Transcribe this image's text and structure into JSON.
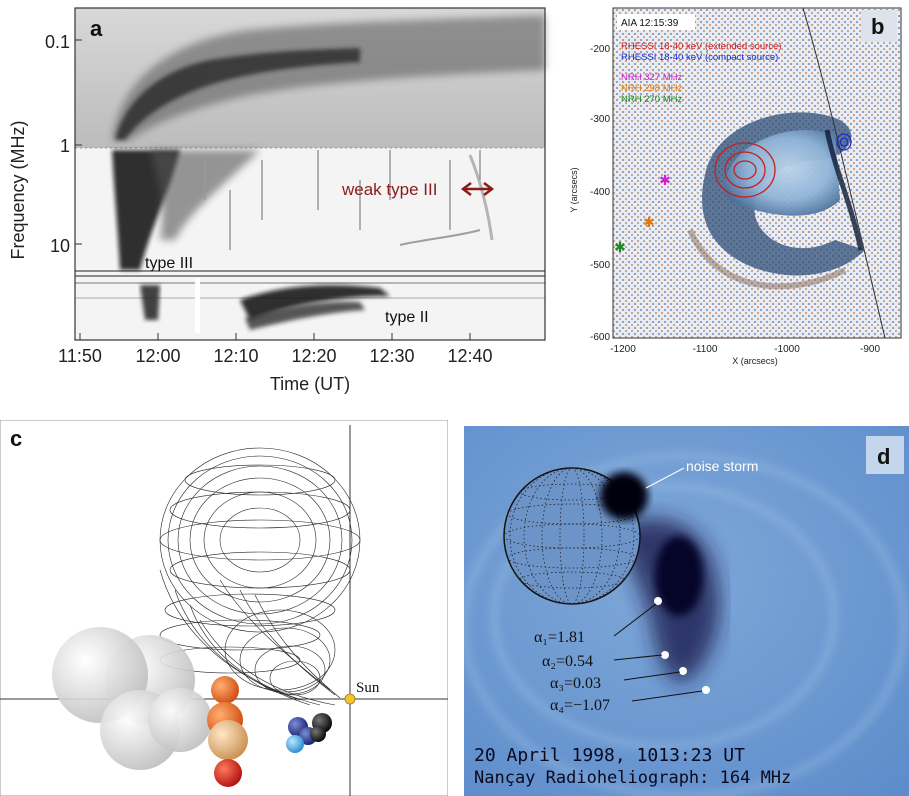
{
  "panel_a": {
    "label": "a",
    "ylabel": "Frequency  (MHz)",
    "xlabel": "Time  (UT)",
    "yticks": [
      "0.1",
      "1",
      "10"
    ],
    "xticks": [
      "11:50",
      "12:00",
      "12:10",
      "12:20",
      "12:30",
      "12:40"
    ],
    "annotations": {
      "weak_type3": "weak type III",
      "type3": "type III",
      "type2": "type II"
    },
    "colors": {
      "weak_type3": "#8b1a1a"
    }
  },
  "panel_b": {
    "label": "b",
    "timestamp": "AIA 12:15:39",
    "legend": [
      {
        "text": "RHESSI 18-40 keV (extended source)",
        "color": "#d01c1c"
      },
      {
        "text": "RHESSI 18-40 keV (compact source)",
        "color": "#1c2bd0"
      },
      {
        "text": "NRH 327 MHz",
        "color": "#d020d0"
      },
      {
        "text": "NRH 298 MHz",
        "color": "#e07a10"
      },
      {
        "text": "NRH 270 MHz",
        "color": "#1a8a1a"
      }
    ],
    "yticks": [
      "-200",
      "-300",
      "-400",
      "-500",
      "-600"
    ],
    "xticks": [
      "-1200",
      "-1100",
      "-1000",
      "-900"
    ],
    "ylabel": "Y (arcsecs)",
    "xlabel": "X (arcsecs)"
  },
  "panel_c": {
    "label": "c",
    "sun_label": "Sun"
  },
  "panel_d": {
    "label": "d",
    "noise_storm": "noise storm",
    "alphas": [
      "α₁=1.81",
      "α₂=0.54",
      "α₃=0.03",
      "α₄=−1.07"
    ],
    "caption_line1": "20 April 1998, 1013:23 UT",
    "caption_line2": "Nançay Radioheliograph: 164 MHz"
  }
}
